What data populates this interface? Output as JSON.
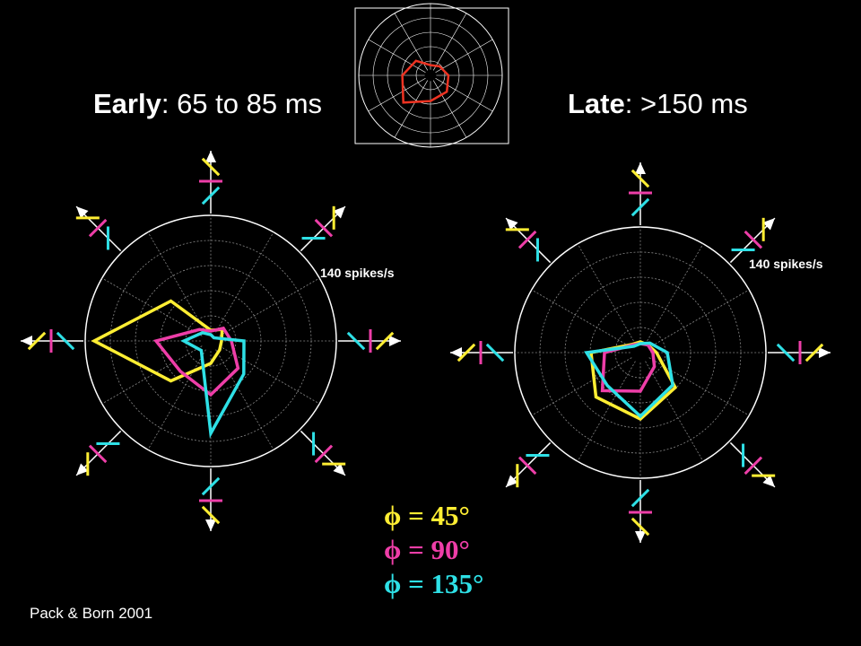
{
  "colors": {
    "yellow": "#ffee33",
    "magenta": "#ee3ea8",
    "cyan": "#2ee0e6",
    "inset_trace": "#ee3322",
    "grid": "#888888",
    "background": "#000000"
  },
  "titles": {
    "early_bold": "Early",
    "early_rest": ": 65 to 85 ms",
    "late_bold": "Late",
    "late_rest": ": >150 ms"
  },
  "scale_label": "140 spikes/s",
  "legend": [
    {
      "label": "ϕ = 45°",
      "color": "#ffee33"
    },
    {
      "label": "ϕ = 90°",
      "color": "#ee3ea8"
    },
    {
      "label": "ϕ = 135°",
      "color": "#2ee0e6"
    }
  ],
  "citation": "Pack & Born 2001",
  "chart_data": [
    {
      "type": "polar",
      "panel": "early",
      "directions_deg": [
        0,
        45,
        90,
        135,
        180,
        225,
        270,
        315
      ],
      "r_max": 140,
      "unit": "spikes/s",
      "series": [
        {
          "name": "ϕ = 45°",
          "color": "#ffee33",
          "values": [
            12,
            18,
            12,
            63,
            130,
            63,
            25,
            14
          ]
        },
        {
          "name": "ϕ = 90°",
          "color": "#ee3ea8",
          "values": [
            23,
            20,
            11,
            18,
            61,
            48,
            60,
            43
          ]
        },
        {
          "name": "ϕ = 135°",
          "color": "#2ee0e6",
          "values": [
            37,
            5,
            7,
            13,
            30,
            15,
            103,
            52
          ]
        }
      ]
    },
    {
      "type": "polar",
      "panel": "late",
      "directions_deg": [
        0,
        45,
        90,
        135,
        180,
        225,
        270,
        315
      ],
      "r_max": 140,
      "unit": "spikes/s",
      "series": [
        {
          "name": "ϕ = 45°",
          "color": "#ffee33",
          "values": [
            18,
            12,
            12,
            13,
            55,
            70,
            74,
            55
          ]
        },
        {
          "name": "ϕ = 90°",
          "color": "#ee3ea8",
          "values": [
            14,
            12,
            10,
            12,
            40,
            60,
            43,
            22
          ]
        },
        {
          "name": "ϕ = 135°",
          "color": "#2ee0e6",
          "values": [
            30,
            15,
            10,
            10,
            60,
            52,
            71,
            51
          ]
        }
      ]
    },
    {
      "type": "polar",
      "panel": "inset",
      "directions_deg": [
        0,
        45,
        90,
        135,
        180,
        225,
        270,
        315
      ],
      "r_max": 140,
      "series": [
        {
          "color": "#ee3322",
          "values": [
            35,
            25,
            20,
            40,
            55,
            75,
            50,
            45
          ]
        }
      ]
    }
  ]
}
